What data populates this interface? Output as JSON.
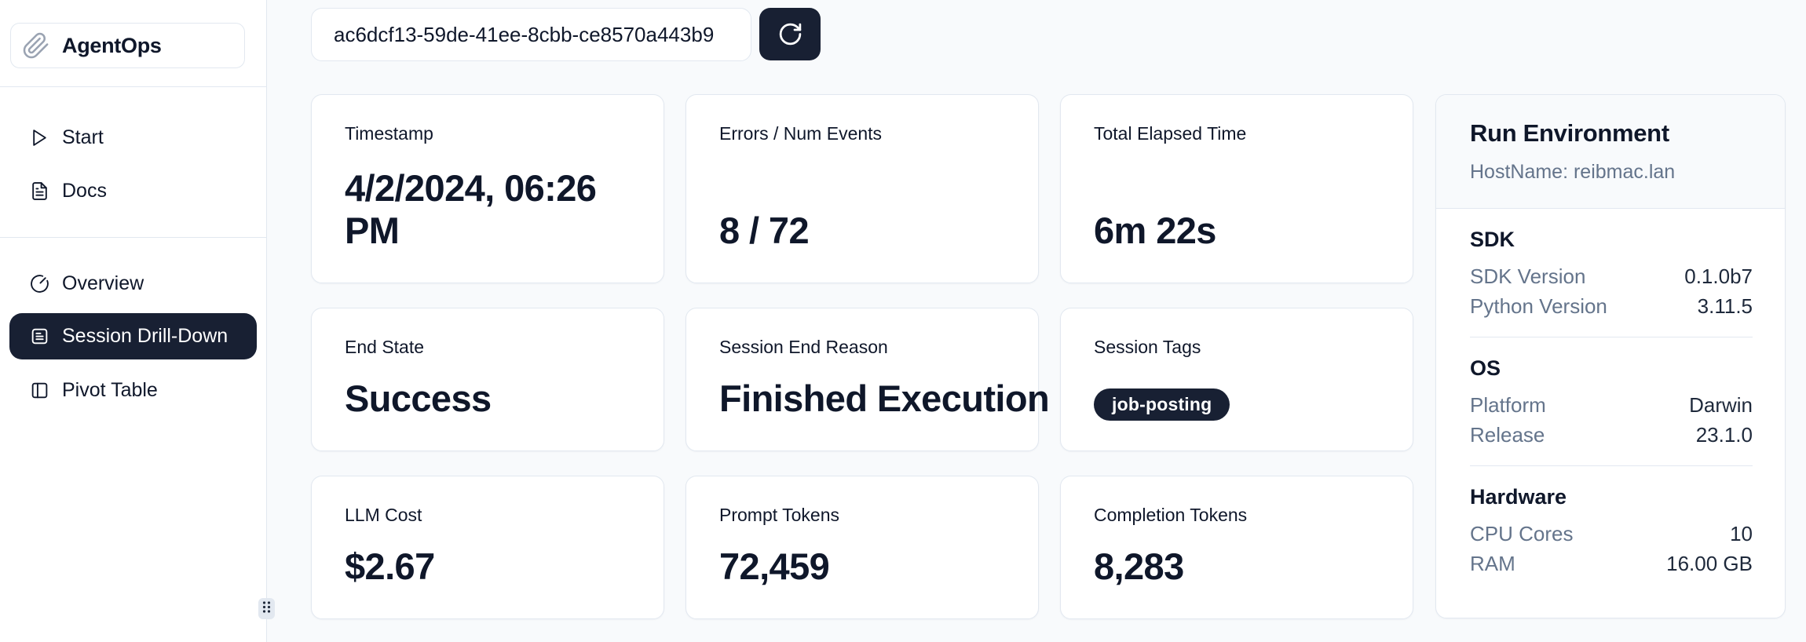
{
  "app": {
    "name": "AgentOps"
  },
  "sidebar": {
    "nav_top": [
      {
        "label": "Start",
        "icon": "play-icon"
      },
      {
        "label": "Docs",
        "icon": "docs-icon"
      }
    ],
    "nav_main": [
      {
        "label": "Overview",
        "icon": "gauge-icon",
        "active": false
      },
      {
        "label": "Session Drill-Down",
        "icon": "session-icon",
        "active": true
      },
      {
        "label": "Pivot Table",
        "icon": "pivot-icon",
        "active": false
      }
    ]
  },
  "toolbar": {
    "session_id": "ac6dcf13-59de-41ee-8cbb-ce8570a443b9",
    "refresh_icon": "refresh-icon"
  },
  "cards": [
    {
      "label": "Timestamp",
      "value": "4/2/2024, 06:26 PM",
      "multiline": true
    },
    {
      "label": "Errors / Num Events",
      "value": "8 / 72"
    },
    {
      "label": "Total Elapsed Time",
      "value": "6m 22s"
    },
    {
      "label": "End State",
      "value": "Success"
    },
    {
      "label": "Session End Reason",
      "value": "Finished Execution"
    },
    {
      "label": "Session Tags",
      "tags": [
        "job-posting"
      ]
    },
    {
      "label": "LLM Cost",
      "value": "$2.67"
    },
    {
      "label": "Prompt Tokens",
      "value": "72,459"
    },
    {
      "label": "Completion Tokens",
      "value": "8,283"
    }
  ],
  "run_environment": {
    "title": "Run Environment",
    "hostname": "HostName: reibmac.lan",
    "sections": [
      {
        "heading": "SDK",
        "rows": [
          {
            "label": "SDK Version",
            "value": "0.1.0b7"
          },
          {
            "label": "Python Version",
            "value": "3.11.5"
          }
        ]
      },
      {
        "heading": "OS",
        "rows": [
          {
            "label": "Platform",
            "value": "Darwin"
          },
          {
            "label": "Release",
            "value": "23.1.0"
          }
        ]
      },
      {
        "heading": "Hardware",
        "rows": [
          {
            "label": "CPU Cores",
            "value": "10"
          },
          {
            "label": "RAM",
            "value": "16.00 GB"
          }
        ]
      }
    ]
  },
  "colors": {
    "accent_dark": "#182033",
    "page_background": "#f8fafc",
    "card_border": "#e2e8f0",
    "muted_text": "#64748b",
    "dark_text": "#0f172a"
  }
}
